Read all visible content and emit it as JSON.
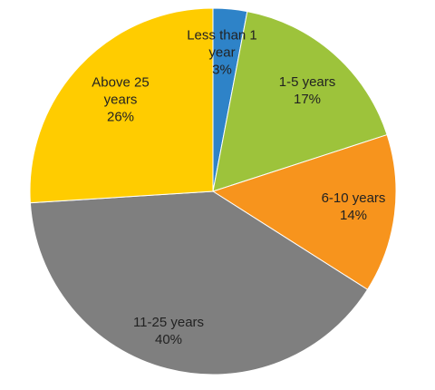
{
  "chart_data": {
    "type": "pie",
    "categories": [
      "Less than 1 year",
      "1-5 years",
      "6-10 years",
      "11-25 years",
      "Above 25 years"
    ],
    "values": [
      3,
      17,
      14,
      40,
      26
    ],
    "value_labels": [
      "3%",
      "17%",
      "14%",
      "40%",
      "26%"
    ],
    "colors": [
      "#2e83c8",
      "#9dc33b",
      "#f7941d",
      "#7f7f7f",
      "#ffcc00"
    ]
  }
}
